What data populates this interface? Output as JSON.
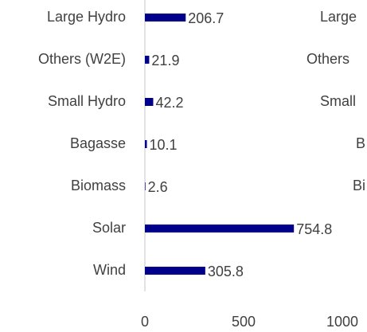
{
  "chart_data": {
    "type": "barh",
    "categories": [
      "Large Hydro",
      "Others (W2E)",
      "Small Hydro",
      "Bagasse",
      "Biomass",
      "Solar",
      "Wind"
    ],
    "values": [
      206.7,
      21.9,
      42.2,
      10.1,
      2.6,
      754.8,
      305.8
    ],
    "color": "#00008b",
    "xlim": [
      0,
      1000
    ],
    "xticks": [
      0,
      500,
      1000
    ]
  },
  "partial_chart": {
    "categories": [
      "Large",
      "Others",
      "Small",
      "B",
      "Bi"
    ]
  }
}
